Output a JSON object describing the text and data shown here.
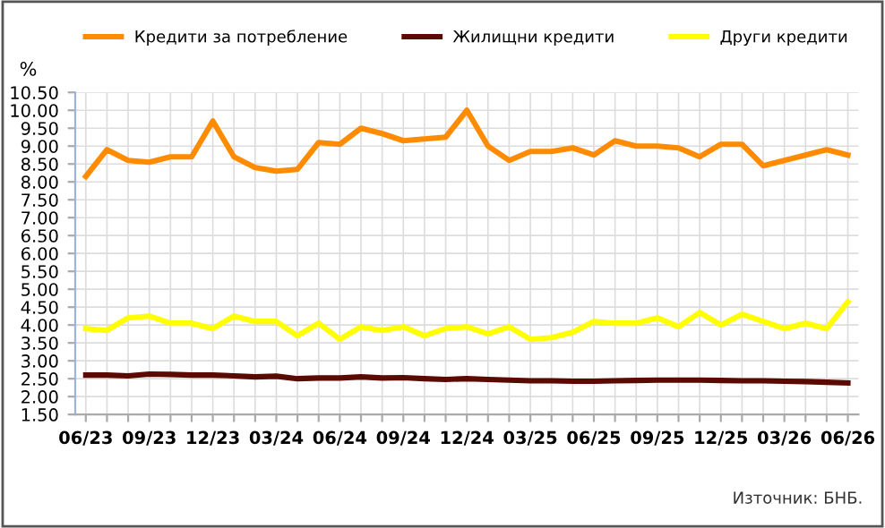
{
  "chart_data": {
    "type": "line",
    "ylabel": "%",
    "categories": [
      "06/23",
      null,
      null,
      "09/23",
      null,
      null,
      "12/23",
      null,
      null,
      "03/24",
      null,
      null,
      "06/24",
      null,
      null,
      "09/24",
      null,
      null,
      "12/24",
      null,
      null,
      "03/25",
      null,
      null,
      "06/25",
      null,
      null,
      "09/25",
      null,
      null,
      "12/25",
      null,
      null,
      "03/26",
      null,
      null,
      "06/26"
    ],
    "series": [
      {
        "name": "Кредити за потребление",
        "color": "#ff8c00",
        "values": [
          8.15,
          8.9,
          8.6,
          8.55,
          8.7,
          8.7,
          9.7,
          8.7,
          8.4,
          8.3,
          8.35,
          9.1,
          9.05,
          9.5,
          9.35,
          9.15,
          9.2,
          9.25,
          10.0,
          9.0,
          8.6,
          8.85,
          8.85,
          8.95,
          8.75,
          9.15,
          9.0,
          9.0,
          8.95,
          8.7,
          9.05,
          9.05,
          8.45,
          8.6,
          8.75,
          8.9,
          8.75
        ]
      },
      {
        "name": "Жилищни кредити",
        "color": "#5a0a00",
        "values": [
          2.6,
          2.6,
          2.58,
          2.63,
          2.62,
          2.6,
          2.6,
          2.58,
          2.55,
          2.57,
          2.5,
          2.52,
          2.52,
          2.55,
          2.52,
          2.53,
          2.5,
          2.48,
          2.5,
          2.48,
          2.46,
          2.44,
          2.44,
          2.43,
          2.43,
          2.44,
          2.45,
          2.46,
          2.46,
          2.46,
          2.45,
          2.44,
          2.44,
          2.43,
          2.42,
          2.4,
          2.38
        ]
      },
      {
        "name": "Други кредити",
        "color": "#ffff00",
        "values": [
          3.9,
          3.85,
          4.2,
          4.25,
          4.05,
          4.05,
          3.9,
          4.25,
          4.1,
          4.1,
          3.7,
          4.05,
          3.6,
          3.95,
          3.85,
          3.95,
          3.7,
          3.9,
          3.95,
          3.75,
          3.95,
          3.6,
          3.65,
          3.8,
          4.1,
          4.05,
          4.05,
          4.2,
          3.95,
          4.35,
          4.0,
          4.3,
          4.1,
          3.9,
          4.05,
          3.9,
          4.65
        ]
      }
    ],
    "ylim": [
      1.5,
      10.5
    ],
    "yticks": [
      {
        "value": 1.5,
        "label": "1.50"
      },
      {
        "value": 2.0,
        "label": "2.00"
      },
      {
        "value": 2.5,
        "label": "2.50"
      },
      {
        "value": 3.0,
        "label": "3.00"
      },
      {
        "value": 3.5,
        "label": "3.50"
      },
      {
        "value": 4.0,
        "label": "4.00"
      },
      {
        "value": 4.5,
        "label": "4.50"
      },
      {
        "value": 5.0,
        "label": "5.00"
      },
      {
        "value": 5.5,
        "label": "5.50"
      },
      {
        "value": 6.0,
        "label": "6.00"
      },
      {
        "value": 6.5,
        "label": "6.50"
      },
      {
        "value": 7.0,
        "label": "7.00"
      },
      {
        "value": 7.5,
        "label": "7.50"
      },
      {
        "value": 8.0,
        "label": "8.00"
      },
      {
        "value": 8.5,
        "label": "8.50"
      },
      {
        "value": 9.0,
        "label": "9.00"
      },
      {
        "value": 9.5,
        "label": "9.50"
      },
      {
        "value": 10.0,
        "label": "10.00"
      },
      {
        "value": 10.5,
        "label": "10.50"
      }
    ],
    "grid": true,
    "legend": "top",
    "marker": "none",
    "line_style": "solid",
    "annotations": [
      "Източник: БНБ."
    ]
  }
}
